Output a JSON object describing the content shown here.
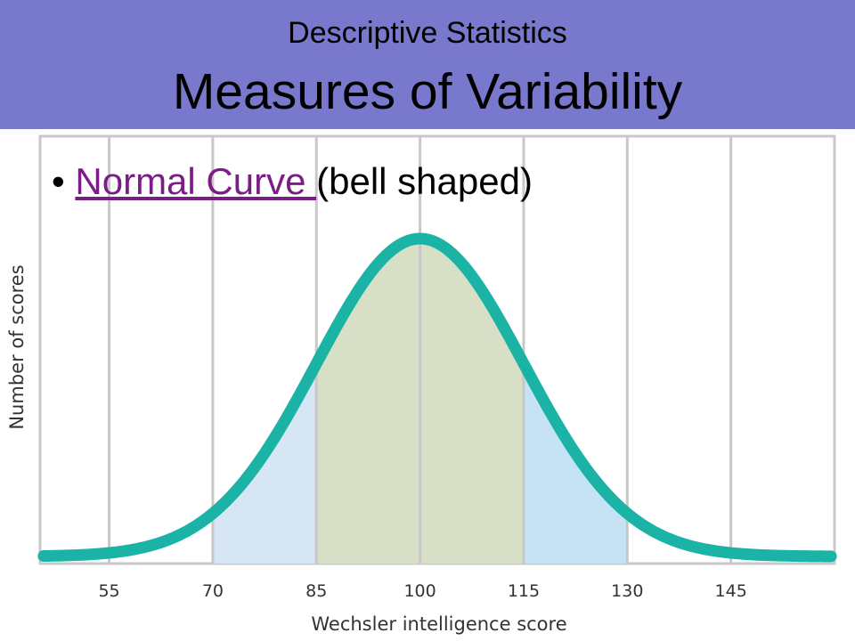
{
  "slide": {
    "subtitle": "Descriptive Statistics",
    "title": "Measures of Variability",
    "bullet": {
      "marker": "•",
      "link_text": "Normal Curve ",
      "rest_text": "(bell shaped)"
    }
  },
  "colors": {
    "header_bg": "#7878cc",
    "curve": "#1ab3a6",
    "band_outer_left": "#d6e6f5",
    "band_center": "#d7dfc6",
    "band_outer_right": "#c5e3f5",
    "grid": "#c8c8c8",
    "link": "#7b1d86"
  },
  "chart_data": {
    "type": "area",
    "distribution": "normal",
    "mean": 100,
    "sd": 15,
    "xlabel": "Wechsler intelligence score",
    "ylabel": "Number of scores",
    "xlim": [
      45,
      160
    ],
    "x_ticks": [
      55,
      70,
      85,
      100,
      115,
      130,
      145
    ],
    "x_tick_labels": [
      "55",
      "70",
      "85",
      "100",
      "115",
      "130",
      "145"
    ],
    "shaded_bands": [
      {
        "from": 70,
        "to": 85,
        "color": "#d6e6f5"
      },
      {
        "from": 85,
        "to": 115,
        "color": "#d7dfc6"
      },
      {
        "from": 115,
        "to": 130,
        "color": "#c5e3f5"
      }
    ],
    "grid": true
  }
}
